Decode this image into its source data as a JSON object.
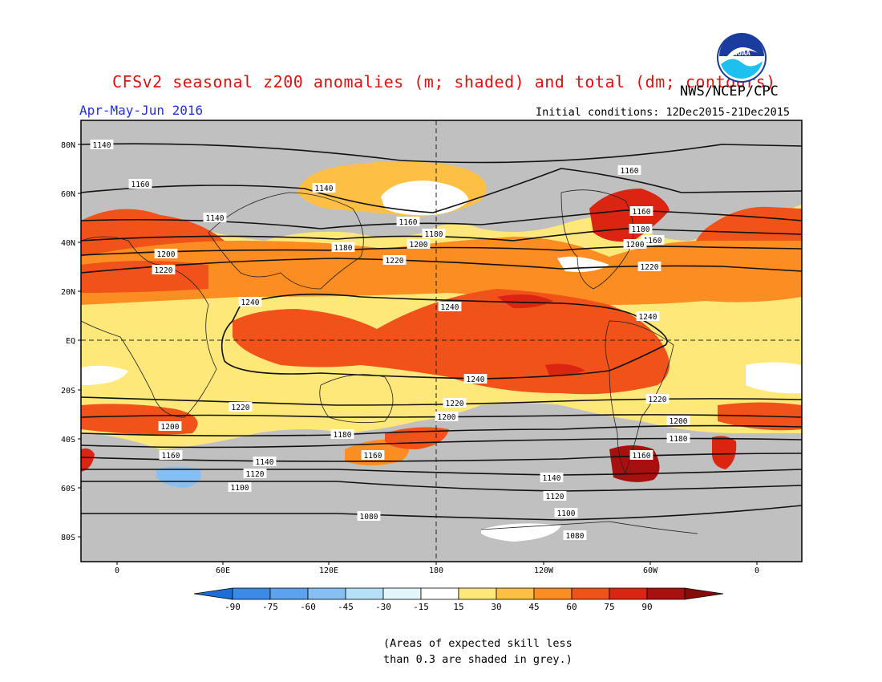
{
  "header": {
    "title": "CFSv2 seasonal z200 anomalies (m; shaded) and total (dm; contours)",
    "agency": "NWS/NCEP/CPC",
    "season": "Apr-May-Jun 2016",
    "initial_conditions": "Initial conditions: 12Dec2015-21Dec2015",
    "logo_text": "NOAA",
    "colors": {
      "title": "#dd1111",
      "season": "#2233dd"
    }
  },
  "map": {
    "lat_ticks": [
      "80N",
      "60N",
      "40N",
      "20N",
      "EQ",
      "20S",
      "40S",
      "60S",
      "80S"
    ],
    "lon_ticks": [
      "0",
      "60E",
      "120E",
      "180",
      "120W",
      "60W",
      "0"
    ],
    "contour_labels": [
      "1140",
      "1160",
      "1140",
      "1160",
      "1140",
      "1160",
      "1180",
      "1160",
      "1200",
      "1180",
      "1220",
      "1160",
      "1180",
      "1200",
      "1200",
      "1220",
      "1220",
      "1240",
      "1240",
      "1240",
      "1240",
      "1220",
      "1220",
      "1220",
      "1200",
      "1200",
      "1200",
      "1180",
      "1180",
      "1160",
      "1160",
      "1160",
      "1140",
      "1140",
      "1120",
      "1120",
      "1100",
      "1100",
      "1080",
      "1080"
    ]
  },
  "colorbar": {
    "labels": [
      "-90",
      "-75",
      "-60",
      "-45",
      "-30",
      "-15",
      "15",
      "30",
      "45",
      "60",
      "75",
      "90"
    ],
    "colors": [
      "#1d6fd8",
      "#3a8ae6",
      "#5ca2ee",
      "#86bff3",
      "#b5e0f8",
      "#e0f6fa",
      "#ffffff",
      "#ffe87a",
      "#fec044",
      "#fb8d23",
      "#f0521a",
      "#db2412",
      "#a80f0f",
      "#8a0a0a"
    ]
  },
  "caption": {
    "line1": "(Areas of expected skill less",
    "line2": "than 0.3 are shaded in grey.)"
  }
}
